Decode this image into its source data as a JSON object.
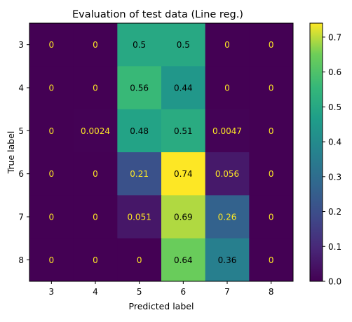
{
  "chart_data": {
    "type": "heatmap",
    "title": "Evaluation of test data (Line reg.)",
    "xlabel": "Predicted label",
    "ylabel": "True label",
    "x_categories": [
      "3",
      "4",
      "5",
      "6",
      "7",
      "8"
    ],
    "y_categories": [
      "3",
      "4",
      "5",
      "6",
      "7",
      "8"
    ],
    "values": [
      [
        0,
        0,
        0.5,
        0.5,
        0,
        0
      ],
      [
        0,
        0,
        0.56,
        0.44,
        0,
        0
      ],
      [
        0,
        0.0024,
        0.48,
        0.51,
        0.0047,
        0
      ],
      [
        0,
        0,
        0.21,
        0.74,
        0.056,
        0
      ],
      [
        0,
        0,
        0.051,
        0.69,
        0.26,
        0
      ],
      [
        0,
        0,
        0,
        0.64,
        0.36,
        0
      ]
    ],
    "labels": [
      [
        "0",
        "0",
        "0.5",
        "0.5",
        "0",
        "0"
      ],
      [
        "0",
        "0",
        "0.56",
        "0.44",
        "0",
        "0"
      ],
      [
        "0",
        "0.0024",
        "0.48",
        "0.51",
        "0.0047",
        "0"
      ],
      [
        "0",
        "0",
        "0.21",
        "0.74",
        "0.056",
        "0"
      ],
      [
        "0",
        "0",
        "0.051",
        "0.69",
        "0.26",
        "0"
      ],
      [
        "0",
        "0",
        "0",
        "0.64",
        "0.36",
        "0"
      ]
    ],
    "colormap": "viridis",
    "vmin": 0,
    "vmax": 0.74,
    "colorbar": {
      "ticks": [
        0.0,
        0.1,
        0.2,
        0.3,
        0.4,
        0.5,
        0.6,
        0.7
      ],
      "tick_labels": [
        "0.0",
        "0.1",
        "0.2",
        "0.3",
        "0.4",
        "0.5",
        "0.6",
        "0.7"
      ]
    },
    "grid": false
  }
}
